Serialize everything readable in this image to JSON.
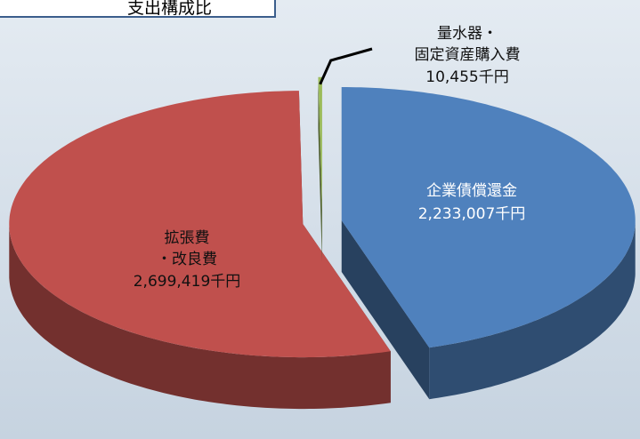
{
  "chart_data": {
    "type": "pie3d",
    "title": "支出構成比",
    "categories": [
      "企業債償還金",
      "拡張費\n・改良費",
      "量水器・\n固定資産購入費"
    ],
    "values": [
      2233007,
      2699419,
      10455
    ],
    "value_labels": [
      "2,233,007千円",
      "2,699,419千円",
      "10,455千円"
    ],
    "colors": [
      "#4f81bd",
      "#c0504d",
      "#9bbb59"
    ]
  }
}
